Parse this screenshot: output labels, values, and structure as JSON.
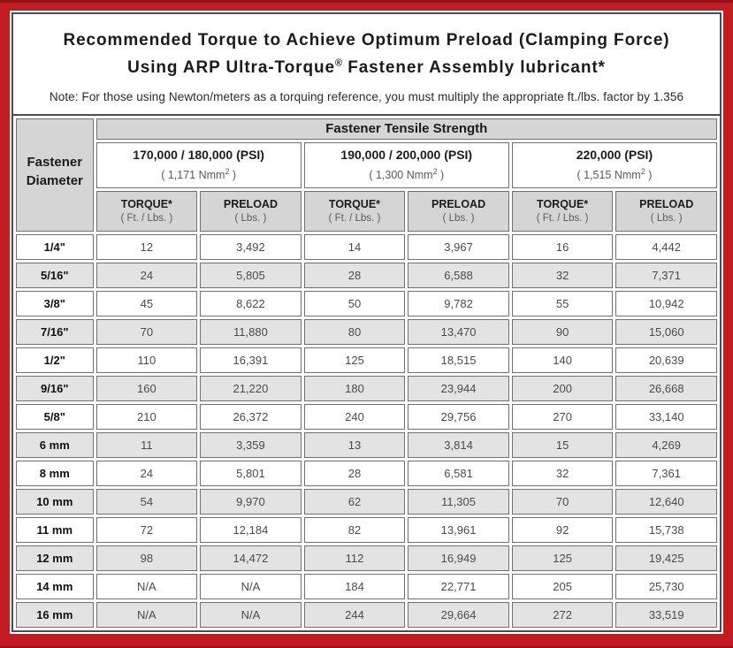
{
  "colors": {
    "frame_red": "#c21b21",
    "frame_red_dark": "#941216",
    "panel_border": "#4d4d4d",
    "cell_border": "#707070",
    "header_gray": "#d5d5d5",
    "stripe_gray": "#e3e3e3"
  },
  "header": {
    "title_line1": "Recommended Torque to Achieve Optimum Preload (Clamping Force)",
    "title_line2_pre": "Using ARP Ultra-Torque",
    "title_reg_mark": "®",
    "title_line2_post": " Fastener Assembly lubricant*",
    "note": "Note: For those using Newton/meters as a torquing reference, you must multiply the appropriate ft./lbs. factor by 1.356"
  },
  "table": {
    "group_header": "Fastener Tensile Strength",
    "corner_header": {
      "line1": "Fastener",
      "line2": "Diameter"
    },
    "strength_columns": [
      {
        "psi": "170,000 / 180,000 (PSI)",
        "nmm_prefix": "( 1,171 Nmm",
        "nmm_sup": "2",
        "nmm_suffix": " )"
      },
      {
        "psi": "190,000 / 200,000 (PSI)",
        "nmm_prefix": "( 1,300 Nmm",
        "nmm_sup": "2",
        "nmm_suffix": " )"
      },
      {
        "psi": "220,000 (PSI)",
        "nmm_prefix": "( 1,515 Nmm",
        "nmm_sup": "2",
        "nmm_suffix": " )"
      }
    ],
    "sub_headers": {
      "torque_label": "TORQUE*",
      "torque_unit": "( Ft. / Lbs. )",
      "preload_label": "PRELOAD",
      "preload_unit": "( Lbs. )"
    },
    "rows": [
      {
        "diameter": "1/4\"",
        "values": [
          "12",
          "3,492",
          "14",
          "3,967",
          "16",
          "4,442"
        ]
      },
      {
        "diameter": "5/16\"",
        "values": [
          "24",
          "5,805",
          "28",
          "6,588",
          "32",
          "7,371"
        ]
      },
      {
        "diameter": "3/8\"",
        "values": [
          "45",
          "8,622",
          "50",
          "9,782",
          "55",
          "10,942"
        ]
      },
      {
        "diameter": "7/16\"",
        "values": [
          "70",
          "11,880",
          "80",
          "13,470",
          "90",
          "15,060"
        ]
      },
      {
        "diameter": "1/2\"",
        "values": [
          "110",
          "16,391",
          "125",
          "18,515",
          "140",
          "20,639"
        ]
      },
      {
        "diameter": "9/16\"",
        "values": [
          "160",
          "21,220",
          "180",
          "23,944",
          "200",
          "26,668"
        ]
      },
      {
        "diameter": "5/8\"",
        "values": [
          "210",
          "26,372",
          "240",
          "29,756",
          "270",
          "33,140"
        ]
      },
      {
        "diameter": "6 mm",
        "values": [
          "11",
          "3,359",
          "13",
          "3,814",
          "15",
          "4,269"
        ]
      },
      {
        "diameter": "8 mm",
        "values": [
          "24",
          "5,801",
          "28",
          "6,581",
          "32",
          "7,361"
        ]
      },
      {
        "diameter": "10 mm",
        "values": [
          "54",
          "9,970",
          "62",
          "11,305",
          "70",
          "12,640"
        ]
      },
      {
        "diameter": "11 mm",
        "values": [
          "72",
          "12,184",
          "82",
          "13,961",
          "92",
          "15,738"
        ]
      },
      {
        "diameter": "12 mm",
        "values": [
          "98",
          "14,472",
          "112",
          "16,949",
          "125",
          "19,425"
        ]
      },
      {
        "diameter": "14 mm",
        "values": [
          "N/A",
          "N/A",
          "184",
          "22,771",
          "205",
          "25,730"
        ]
      },
      {
        "diameter": "16 mm",
        "values": [
          "N/A",
          "N/A",
          "244",
          "29,664",
          "272",
          "33,519"
        ]
      }
    ]
  }
}
